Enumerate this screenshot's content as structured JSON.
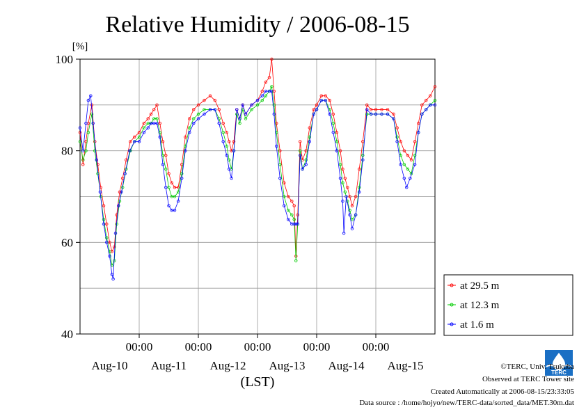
{
  "chart_data": {
    "type": "line",
    "title": "Relative Humidity / 2006-08-15",
    "ylabel_unit": "[%]",
    "xlabel": "(LST)",
    "ylim": [
      40,
      100
    ],
    "y_ticks": [
      40,
      60,
      80,
      100
    ],
    "x_time_ticks": [
      "00:00",
      "00:00",
      "00:00",
      "00:00",
      "00:00"
    ],
    "x_date_ticks": [
      "Aug-10",
      "Aug-11",
      "Aug-12",
      "Aug-13",
      "Aug-14",
      "Aug-15"
    ],
    "x_range_days": [
      -1.0,
      5.0
    ],
    "grid": true,
    "legend_position": "lower-right, outside plot",
    "series": [
      {
        "name": "at 29.5 m",
        "color": "#ff0000",
        "points": [
          [
            -1.0,
            84
          ],
          [
            -0.95,
            77
          ],
          [
            -0.9,
            82
          ],
          [
            -0.86,
            86
          ],
          [
            -0.8,
            90
          ],
          [
            -0.75,
            82
          ],
          [
            -0.7,
            77
          ],
          [
            -0.65,
            72
          ],
          [
            -0.6,
            68
          ],
          [
            -0.55,
            64
          ],
          [
            -0.5,
            60
          ],
          [
            -0.46,
            58
          ],
          [
            -0.42,
            59
          ],
          [
            -0.38,
            66
          ],
          [
            -0.33,
            71
          ],
          [
            -0.28,
            74
          ],
          [
            -0.22,
            78
          ],
          [
            -0.15,
            82
          ],
          [
            -0.08,
            83
          ],
          [
            0.0,
            84
          ],
          [
            0.08,
            86
          ],
          [
            0.15,
            87
          ],
          [
            0.2,
            88
          ],
          [
            0.25,
            89
          ],
          [
            0.3,
            90
          ],
          [
            0.35,
            86
          ],
          [
            0.4,
            82
          ],
          [
            0.45,
            79
          ],
          [
            0.5,
            75
          ],
          [
            0.55,
            73
          ],
          [
            0.6,
            72
          ],
          [
            0.66,
            72
          ],
          [
            0.72,
            77
          ],
          [
            0.78,
            83
          ],
          [
            0.85,
            87
          ],
          [
            0.92,
            89
          ],
          [
            1.0,
            90
          ],
          [
            1.1,
            91
          ],
          [
            1.2,
            92
          ],
          [
            1.28,
            91
          ],
          [
            1.35,
            89
          ],
          [
            1.42,
            86
          ],
          [
            1.48,
            84
          ],
          [
            1.52,
            82
          ],
          [
            1.56,
            80
          ],
          [
            1.6,
            82
          ],
          [
            1.65,
            89
          ],
          [
            1.7,
            87
          ],
          [
            1.75,
            90
          ],
          [
            1.8,
            88
          ],
          [
            1.9,
            90
          ],
          [
            2.0,
            91
          ],
          [
            2.08,
            93
          ],
          [
            2.14,
            95
          ],
          [
            2.2,
            96
          ],
          [
            2.24,
            100
          ],
          [
            2.28,
            93
          ],
          [
            2.32,
            86
          ],
          [
            2.38,
            80
          ],
          [
            2.45,
            73
          ],
          [
            2.52,
            70
          ],
          [
            2.58,
            69
          ],
          [
            2.62,
            68
          ],
          [
            2.65,
            57
          ],
          [
            2.68,
            66
          ],
          [
            2.72,
            82
          ],
          [
            2.76,
            78
          ],
          [
            2.82,
            80
          ],
          [
            2.88,
            85
          ],
          [
            2.95,
            89
          ],
          [
            3.0,
            90
          ],
          [
            3.08,
            92
          ],
          [
            3.15,
            92
          ],
          [
            3.22,
            91
          ],
          [
            3.28,
            88
          ],
          [
            3.34,
            84
          ],
          [
            3.4,
            80
          ],
          [
            3.44,
            76
          ],
          [
            3.48,
            74
          ],
          [
            3.52,
            72
          ],
          [
            3.56,
            70
          ],
          [
            3.6,
            68
          ],
          [
            3.66,
            70
          ],
          [
            3.72,
            76
          ],
          [
            3.78,
            82
          ],
          [
            3.85,
            90
          ],
          [
            3.92,
            89
          ],
          [
            4.0,
            89
          ],
          [
            4.1,
            89
          ],
          [
            4.2,
            89
          ],
          [
            4.3,
            88
          ],
          [
            4.36,
            85
          ],
          [
            4.42,
            82
          ],
          [
            4.48,
            80
          ],
          [
            4.54,
            79
          ],
          [
            4.6,
            78
          ],
          [
            4.66,
            82
          ],
          [
            4.72,
            86
          ],
          [
            4.78,
            90
          ],
          [
            4.85,
            91
          ],
          [
            4.92,
            92
          ],
          [
            5.0,
            94
          ]
        ]
      },
      {
        "name": "at 12.3 m",
        "color": "#00cc00",
        "points": [
          [
            -1.0,
            82
          ],
          [
            -0.95,
            78
          ],
          [
            -0.9,
            80
          ],
          [
            -0.86,
            84
          ],
          [
            -0.8,
            88
          ],
          [
            -0.75,
            80
          ],
          [
            -0.7,
            75
          ],
          [
            -0.65,
            70
          ],
          [
            -0.6,
            65
          ],
          [
            -0.55,
            61
          ],
          [
            -0.5,
            58
          ],
          [
            -0.46,
            55
          ],
          [
            -0.42,
            56
          ],
          [
            -0.38,
            64
          ],
          [
            -0.33,
            69
          ],
          [
            -0.28,
            72
          ],
          [
            -0.22,
            76
          ],
          [
            -0.15,
            80
          ],
          [
            -0.08,
            82
          ],
          [
            0.0,
            83
          ],
          [
            0.08,
            85
          ],
          [
            0.15,
            86
          ],
          [
            0.2,
            86
          ],
          [
            0.25,
            87
          ],
          [
            0.3,
            87
          ],
          [
            0.35,
            84
          ],
          [
            0.4,
            79
          ],
          [
            0.45,
            76
          ],
          [
            0.5,
            72
          ],
          [
            0.55,
            70
          ],
          [
            0.6,
            70
          ],
          [
            0.66,
            71
          ],
          [
            0.72,
            75
          ],
          [
            0.78,
            81
          ],
          [
            0.85,
            85
          ],
          [
            0.92,
            87
          ],
          [
            1.0,
            88
          ],
          [
            1.1,
            89
          ],
          [
            1.2,
            89
          ],
          [
            1.28,
            89
          ],
          [
            1.35,
            87
          ],
          [
            1.42,
            84
          ],
          [
            1.48,
            81
          ],
          [
            1.52,
            78
          ],
          [
            1.56,
            76
          ],
          [
            1.6,
            80
          ],
          [
            1.65,
            88
          ],
          [
            1.7,
            86
          ],
          [
            1.75,
            89
          ],
          [
            1.8,
            87
          ],
          [
            1.9,
            89
          ],
          [
            2.0,
            90
          ],
          [
            2.08,
            91
          ],
          [
            2.14,
            92
          ],
          [
            2.2,
            93
          ],
          [
            2.24,
            94
          ],
          [
            2.28,
            90
          ],
          [
            2.32,
            84
          ],
          [
            2.38,
            77
          ],
          [
            2.45,
            70
          ],
          [
            2.52,
            67
          ],
          [
            2.58,
            66
          ],
          [
            2.62,
            65
          ],
          [
            2.65,
            56
          ],
          [
            2.68,
            64
          ],
          [
            2.72,
            80
          ],
          [
            2.76,
            76
          ],
          [
            2.82,
            78
          ],
          [
            2.88,
            83
          ],
          [
            2.95,
            88
          ],
          [
            3.0,
            89
          ],
          [
            3.08,
            91
          ],
          [
            3.15,
            91
          ],
          [
            3.22,
            89
          ],
          [
            3.28,
            86
          ],
          [
            3.34,
            82
          ],
          [
            3.4,
            77
          ],
          [
            3.44,
            73
          ],
          [
            3.48,
            71
          ],
          [
            3.52,
            69
          ],
          [
            3.56,
            67
          ],
          [
            3.6,
            65
          ],
          [
            3.66,
            66
          ],
          [
            3.72,
            72
          ],
          [
            3.78,
            79
          ],
          [
            3.85,
            88
          ],
          [
            3.92,
            88
          ],
          [
            4.0,
            88
          ],
          [
            4.1,
            88
          ],
          [
            4.2,
            88
          ],
          [
            4.3,
            87
          ],
          [
            4.36,
            83
          ],
          [
            4.42,
            79
          ],
          [
            4.48,
            77
          ],
          [
            4.54,
            76
          ],
          [
            4.6,
            75
          ],
          [
            4.66,
            79
          ],
          [
            4.72,
            84
          ],
          [
            4.78,
            88
          ],
          [
            4.85,
            89
          ],
          [
            4.92,
            90
          ],
          [
            5.0,
            91
          ]
        ]
      },
      {
        "name": "at 1.6 m",
        "color": "#0000ff",
        "points": [
          [
            -1.0,
            85
          ],
          [
            -0.95,
            80
          ],
          [
            -0.9,
            86
          ],
          [
            -0.86,
            91
          ],
          [
            -0.82,
            92
          ],
          [
            -0.78,
            86
          ],
          [
            -0.72,
            78
          ],
          [
            -0.66,
            71
          ],
          [
            -0.6,
            64
          ],
          [
            -0.55,
            60
          ],
          [
            -0.5,
            57
          ],
          [
            -0.46,
            53
          ],
          [
            -0.44,
            52
          ],
          [
            -0.4,
            62
          ],
          [
            -0.35,
            68
          ],
          [
            -0.3,
            71
          ],
          [
            -0.24,
            75
          ],
          [
            -0.16,
            80
          ],
          [
            -0.08,
            82
          ],
          [
            0.0,
            82
          ],
          [
            0.08,
            84
          ],
          [
            0.15,
            85
          ],
          [
            0.2,
            86
          ],
          [
            0.25,
            86
          ],
          [
            0.3,
            86
          ],
          [
            0.35,
            83
          ],
          [
            0.4,
            77
          ],
          [
            0.45,
            72
          ],
          [
            0.5,
            68
          ],
          [
            0.55,
            67
          ],
          [
            0.6,
            67
          ],
          [
            0.66,
            69
          ],
          [
            0.72,
            74
          ],
          [
            0.78,
            80
          ],
          [
            0.85,
            84
          ],
          [
            0.92,
            86
          ],
          [
            1.0,
            87
          ],
          [
            1.1,
            88
          ],
          [
            1.2,
            89
          ],
          [
            1.28,
            89
          ],
          [
            1.35,
            86
          ],
          [
            1.42,
            82
          ],
          [
            1.48,
            79
          ],
          [
            1.52,
            76
          ],
          [
            1.56,
            74
          ],
          [
            1.6,
            80
          ],
          [
            1.65,
            89
          ],
          [
            1.7,
            87
          ],
          [
            1.75,
            90
          ],
          [
            1.8,
            88
          ],
          [
            1.9,
            90
          ],
          [
            2.0,
            91
          ],
          [
            2.08,
            92
          ],
          [
            2.14,
            93
          ],
          [
            2.2,
            93
          ],
          [
            2.24,
            93
          ],
          [
            2.28,
            88
          ],
          [
            2.32,
            81
          ],
          [
            2.38,
            74
          ],
          [
            2.45,
            68
          ],
          [
            2.52,
            65
          ],
          [
            2.58,
            64
          ],
          [
            2.62,
            64
          ],
          [
            2.65,
            64
          ],
          [
            2.68,
            64
          ],
          [
            2.72,
            79
          ],
          [
            2.76,
            76
          ],
          [
            2.82,
            77
          ],
          [
            2.88,
            82
          ],
          [
            2.95,
            88
          ],
          [
            3.0,
            89
          ],
          [
            3.08,
            91
          ],
          [
            3.15,
            91
          ],
          [
            3.22,
            88
          ],
          [
            3.28,
            84
          ],
          [
            3.34,
            80
          ],
          [
            3.4,
            74
          ],
          [
            3.44,
            69
          ],
          [
            3.46,
            62
          ],
          [
            3.5,
            70
          ],
          [
            3.56,
            66
          ],
          [
            3.6,
            63
          ],
          [
            3.66,
            66
          ],
          [
            3.72,
            71
          ],
          [
            3.78,
            78
          ],
          [
            3.85,
            89
          ],
          [
            3.92,
            88
          ],
          [
            4.0,
            88
          ],
          [
            4.1,
            88
          ],
          [
            4.2,
            88
          ],
          [
            4.3,
            87
          ],
          [
            4.36,
            82
          ],
          [
            4.42,
            77
          ],
          [
            4.48,
            74
          ],
          [
            4.52,
            72
          ],
          [
            4.58,
            74
          ],
          [
            4.66,
            77
          ],
          [
            4.72,
            84
          ],
          [
            4.78,
            88
          ],
          [
            4.85,
            89
          ],
          [
            4.92,
            90
          ],
          [
            5.0,
            90
          ]
        ]
      }
    ]
  },
  "footer": {
    "copyright": "©TERC, Univ. Tsukuba",
    "observed": "Observed at TERC Tower site",
    "created": "Created Automatically at 2006-08-15/23:33:05",
    "source": "Data source : /home/hojyo/new/TERC-data/sorted_data/MET.30m.dat"
  },
  "logo": {
    "text": "TERC",
    "icon": "terc-water-drop-logo",
    "color": "#1a6fc4"
  }
}
